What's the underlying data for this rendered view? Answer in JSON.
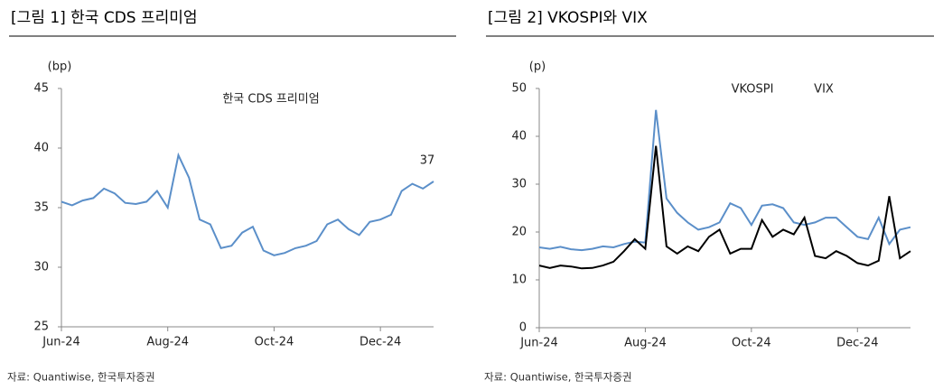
{
  "chart_data": [
    {
      "type": "line",
      "title": "[그림 1] 한국 CDS 프리미엄",
      "unit": "(bp)",
      "source": "자료: Quantiwise, 한국투자증권",
      "categories": [
        "Jun-24",
        null,
        null,
        null,
        null,
        null,
        null,
        null,
        null,
        null,
        "Aug-24",
        null,
        null,
        null,
        null,
        null,
        null,
        null,
        null,
        null,
        "Oct-24",
        null,
        null,
        null,
        null,
        null,
        null,
        null,
        null,
        null,
        "Dec-24",
        null,
        null,
        null,
        null,
        null
      ],
      "ylim": [
        25,
        45
      ],
      "yticks": [
        25,
        30,
        35,
        40,
        45
      ],
      "series": [
        {
          "name": "한국 CDS 프리미엄",
          "color": "#5b8fc9",
          "values": [
            35.5,
            35.2,
            35.6,
            35.8,
            36.6,
            36.2,
            35.4,
            35.3,
            35.5,
            36.4,
            35.0,
            39.4,
            37.5,
            34.0,
            33.6,
            31.6,
            31.8,
            32.9,
            33.4,
            31.4,
            31.0,
            31.2,
            31.6,
            31.8,
            32.2,
            33.6,
            34.0,
            33.2,
            32.7,
            33.8,
            34.0,
            34.4,
            36.4,
            37.0,
            36.6,
            37.2
          ]
        }
      ],
      "annotations": [
        "37"
      ],
      "legend": "inside-top"
    },
    {
      "type": "line",
      "title": "[그림 2] VKOSPI와 VIX",
      "unit": "(p)",
      "source": "자료: Quantiwise, 한국투자증권",
      "categories": [
        "Jun-24",
        null,
        null,
        null,
        null,
        null,
        null,
        null,
        null,
        null,
        "Aug-24",
        null,
        null,
        null,
        null,
        null,
        null,
        null,
        null,
        null,
        "Oct-24",
        null,
        null,
        null,
        null,
        null,
        null,
        null,
        null,
        null,
        "Dec-24",
        null,
        null,
        null,
        null,
        null
      ],
      "ylim": [
        0,
        50
      ],
      "yticks": [
        0,
        10,
        20,
        30,
        40,
        50
      ],
      "series": [
        {
          "name": "VKOSPI",
          "color": "#5b8fc9",
          "values": [
            16.8,
            16.5,
            16.9,
            16.4,
            16.2,
            16.5,
            17.0,
            16.8,
            17.5,
            18.0,
            17.8,
            45.5,
            27.0,
            24.0,
            22.0,
            20.5,
            21.0,
            22.0,
            26.0,
            25.0,
            21.5,
            25.5,
            25.8,
            25.0,
            22.0,
            21.5,
            22.0,
            23.0,
            23.0,
            21.0,
            19.0,
            18.5,
            23.0,
            17.5,
            20.5,
            21.0
          ]
        },
        {
          "name": "VIX",
          "color": "#000000",
          "values": [
            13.0,
            12.5,
            13.0,
            12.8,
            12.4,
            12.5,
            13.0,
            13.8,
            16.0,
            18.5,
            16.5,
            38.0,
            17.0,
            15.5,
            17.0,
            16.0,
            19.0,
            20.5,
            15.5,
            16.5,
            16.5,
            22.5,
            19.0,
            20.5,
            19.5,
            23.0,
            15.0,
            14.5,
            16.0,
            15.0,
            13.5,
            13.0,
            14.0,
            27.5,
            14.5,
            16.0
          ]
        }
      ],
      "legend": "top"
    }
  ]
}
